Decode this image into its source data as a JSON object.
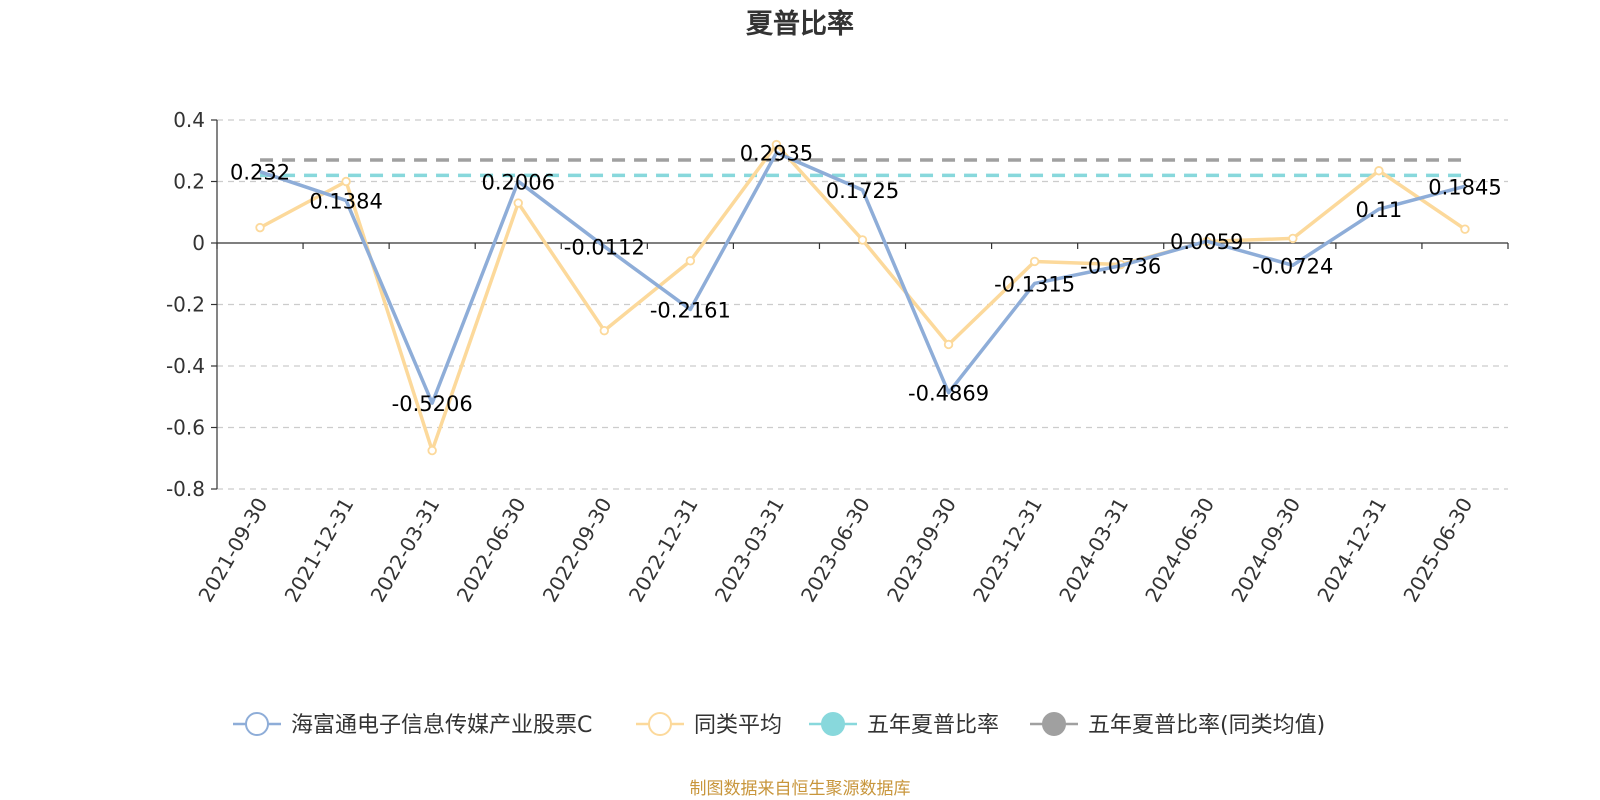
{
  "chart_data": {
    "type": "line",
    "title": "夏普比率",
    "xlabel": "",
    "ylabel": "",
    "ylim": [
      -0.8,
      0.4
    ],
    "yticks": [
      0.4,
      0.2,
      0,
      -0.2,
      -0.4,
      -0.6,
      -0.8
    ],
    "grid": true,
    "legend_position": "bottom",
    "categories": [
      "2021-09-30",
      "2021-12-31",
      "2022-03-31",
      "2022-06-30",
      "2022-09-30",
      "2022-12-31",
      "2023-03-31",
      "2023-06-30",
      "2023-09-30",
      "2023-12-31",
      "2024-03-31",
      "2024-06-30",
      "2024-09-30",
      "2024-12-31",
      "2025-06-30"
    ],
    "series": [
      {
        "name": "海富通电子信息传媒产业股票C",
        "color": "#8eadd8",
        "values": [
          0.232,
          0.1384,
          -0.5206,
          0.2006,
          -0.0112,
          -0.2161,
          0.2935,
          0.1725,
          -0.4869,
          -0.1315,
          -0.0736,
          0.0059,
          -0.0724,
          0.11,
          0.1845
        ],
        "labels": [
          "0.232",
          "0.1384",
          "-0.5206",
          "0.2006",
          "-0.0112",
          "-0.2161",
          "0.2935",
          "0.1725",
          "-0.4869",
          "-0.1315",
          "-0.0736",
          "0.0059",
          "-0.0724",
          "0.11",
          "0.1845"
        ]
      },
      {
        "name": "同类平均",
        "color": "#fcd99b",
        "values": [
          0.05,
          0.2,
          -0.675,
          0.13,
          -0.285,
          -0.058,
          0.32,
          0.01,
          -0.33,
          -0.06,
          -0.07,
          0.005,
          0.015,
          0.235,
          0.045
        ]
      },
      {
        "name": "五年夏普比率",
        "color": "#88d8dc",
        "style": "dashed",
        "constant": 0.22
      },
      {
        "name": "五年夏普比率(同类均值)",
        "color": "#a0a0a0",
        "style": "dashed",
        "constant": 0.27
      }
    ]
  },
  "source_text": "制图数据来自恒生聚源数据库",
  "source_color": "#c8963c"
}
